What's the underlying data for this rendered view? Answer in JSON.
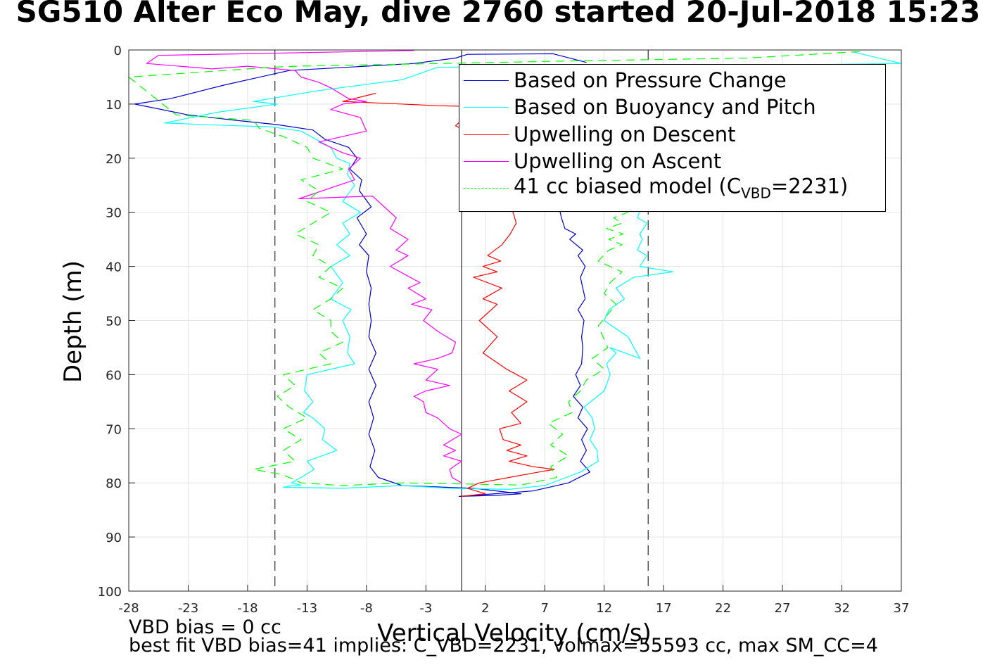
{
  "title": "SG510 Alter Eco May, dive 2760 started 20-Jul-2018 15:23",
  "footer": {
    "line1": "VBD bias = 0 cc",
    "line2": "best fit VBD bias=41 implies: C_VBD=2231, volmax=55593 cc, max SM_CC=4"
  },
  "chart_data": {
    "type": "line",
    "title": "SG510 Alter Eco May, dive 2760 started 20-Jul-2018 15:23",
    "xlabel": "Vertical Velocity (cm/s)",
    "ylabel": "Depth (m)",
    "xlim": [
      -28,
      37
    ],
    "ylim": [
      0,
      100
    ],
    "y_reversed": true,
    "grid": true,
    "legend_position": "top-right",
    "xticks": [
      -28,
      -23,
      -18,
      -13,
      -8,
      -3,
      2,
      7,
      12,
      17,
      22,
      27,
      32,
      37
    ],
    "yticks": [
      0,
      10,
      20,
      30,
      40,
      50,
      60,
      70,
      80,
      90,
      100
    ],
    "reference_lines": {
      "solid_vertical_x": 0,
      "dashed_vertical_x": [
        -15.7,
        15.7
      ]
    },
    "series": [
      {
        "name": "Based on Pressure Change",
        "color": "#0000cc",
        "style": "solid",
        "x": [
          10.5,
          7.7,
          0.5,
          -0.5,
          -4,
          -14.5,
          -20,
          -24.5,
          -27.5,
          -23,
          -19,
          -15.5,
          -12.5,
          -11.5,
          -9.5,
          -8.8,
          -9.4,
          -8.4,
          -8.6,
          -7.6,
          -8.8,
          -8,
          -8.6,
          -7.8,
          -8,
          -7.6,
          -7.8,
          -7.6,
          -7.8,
          -7.2,
          -7.8,
          -7.2,
          -7.8,
          -7.4,
          -7.8,
          -7.3,
          -7.7,
          -7,
          -5,
          1,
          5,
          3,
          -0.2,
          6,
          9,
          10.8,
          10,
          10.5,
          10.1,
          10.6,
          9.8,
          10.2,
          9.4,
          10,
          9.6,
          10.1,
          10.2,
          10.1,
          10.3,
          9.8,
          10.4,
          10.2,
          10,
          10.4,
          9.8,
          10.2,
          9.1,
          9.6,
          8.7,
          8.4,
          8.3,
          8.1
        ],
        "y": [
          2.3,
          0.7,
          0.8,
          1.5,
          2.5,
          3.8,
          6.5,
          9,
          10,
          12,
          13,
          13.8,
          14.8,
          16.5,
          18,
          20,
          22,
          24,
          26,
          29,
          31,
          34,
          36,
          38,
          41,
          44,
          47,
          50,
          53,
          56,
          59,
          62,
          65,
          68,
          71,
          74,
          77,
          79,
          80.5,
          81,
          82,
          82.3,
          82.5,
          81.5,
          80,
          78,
          76,
          74,
          72,
          70,
          68,
          66,
          64,
          62,
          60,
          58,
          55,
          53,
          50,
          48,
          46,
          44,
          42,
          40,
          38,
          37,
          35,
          34,
          33,
          31,
          30,
          28
        ]
      },
      {
        "name": "Based on Buoyancy and Pitch",
        "color": "#00ffff",
        "style": "solid",
        "x": [
          33,
          37,
          27,
          10,
          -2,
          -5,
          -12,
          -17.5,
          -15.5,
          -20.5,
          -25,
          -19,
          -16,
          -13.5,
          -11,
          -10.5,
          -9.4,
          -9.6,
          -9,
          -10,
          -8.5,
          -10,
          -9.4,
          -10.5,
          -9.4,
          -11,
          -10,
          -11,
          -9.3,
          -10,
          -9.4,
          -9.6,
          -9,
          -13,
          -13.2,
          -12.5,
          -13.3,
          -12.5,
          -11.5,
          -11.7,
          -10.5,
          -13,
          -12.4,
          -13.5,
          -14.3,
          -13.5,
          -14.5,
          -15,
          -10,
          -5,
          -1,
          4,
          7,
          10,
          11.5,
          11.4,
          10.8,
          11.2,
          11,
          10.3,
          12,
          12.5,
          12.2,
          13,
          12.5,
          15,
          14,
          12,
          12.4,
          13.7,
          13,
          14.5,
          17.8,
          15,
          15.6,
          14.8,
          15.2,
          15,
          15.6,
          14.8,
          15.1
        ],
        "y": [
          0.4,
          2.5,
          2.8,
          3,
          3.2,
          5.5,
          7.5,
          9.5,
          10,
          11.5,
          13.5,
          14,
          14.2,
          15,
          18,
          20,
          21,
          23,
          25,
          28,
          30,
          32,
          34,
          36,
          38,
          40,
          43,
          46,
          48,
          50,
          53,
          56,
          58,
          60,
          63,
          65,
          67,
          68,
          70,
          72,
          74,
          76,
          77.5,
          79,
          80,
          80.4,
          80.6,
          80.8,
          81,
          80.5,
          81,
          81.2,
          80.5,
          78,
          76,
          74,
          72,
          70,
          68,
          66,
          63,
          60,
          58,
          56,
          55,
          57,
          53,
          50,
          48,
          46,
          44,
          42,
          41,
          40,
          38,
          37,
          35,
          34,
          32,
          31,
          29
        ]
      },
      {
        "name": "Upwelling on Descent",
        "color": "#ff0000",
        "style": "solid",
        "x": [
          -7.2,
          -10,
          -2,
          2,
          0.5,
          -0.5,
          1.2,
          0.8,
          2.5,
          3.2,
          3.2,
          4.5,
          4.2,
          4.6,
          4.1,
          3.4,
          2.2,
          3.3,
          1.8,
          3,
          1,
          3.4,
          1.8,
          3,
          1.5,
          3,
          1.8,
          3.8,
          5.5,
          4,
          5.5,
          4.2,
          5,
          3.2,
          3.5,
          5,
          3.8,
          5.5,
          4,
          6,
          7.8,
          6.5,
          4,
          1.5,
          0.5,
          2,
          0
        ],
        "y": [
          8,
          9.5,
          10.3,
          10.5,
          12,
          14,
          16,
          18,
          20,
          22,
          24,
          26,
          29,
          32,
          34,
          36,
          38,
          39,
          40,
          41,
          42,
          44,
          46,
          47,
          50,
          53,
          56,
          59,
          61,
          63,
          65,
          67,
          69,
          70,
          72,
          73,
          74,
          75,
          76,
          77,
          77.5,
          78,
          79,
          80,
          81,
          82,
          82.5
        ]
      },
      {
        "name": "Upwelling on Ascent",
        "color": "#ff00ff",
        "style": "solid",
        "x": [
          -4,
          -25.5,
          -26.5,
          -21,
          -18,
          -14,
          -13.5,
          -12,
          -11,
          -9.5,
          -8,
          -10,
          -11,
          -8.5,
          -8,
          -12,
          -10,
          -8.5,
          -9.5,
          -9,
          -13.7,
          -7.5,
          -6.5,
          -5.5,
          -6,
          -4.5,
          -5.5,
          -4.5,
          -6,
          -3.5,
          -4.5,
          -3,
          -4.2,
          -2.5,
          -3.2,
          -2,
          -0.5,
          -0.8,
          -2,
          -4,
          -2,
          -3,
          -1,
          -3,
          -4,
          -3.2,
          -3,
          -2,
          -1,
          0,
          -1.5,
          -0.5,
          -1.5,
          0,
          -1,
          -0.8,
          0
        ],
        "y": [
          0.1,
          1,
          2.5,
          3.5,
          3,
          3.8,
          5,
          6,
          7,
          9,
          9.5,
          10,
          11,
          12.5,
          15,
          17,
          19,
          20,
          22,
          24,
          27.5,
          27,
          29,
          31,
          33,
          35,
          37,
          38,
          40,
          43,
          44,
          46,
          47,
          48,
          50,
          52,
          54,
          56,
          57,
          58,
          59,
          61,
          62,
          63,
          64,
          65,
          67,
          68,
          70,
          71,
          73,
          74,
          75,
          76,
          77.5,
          79,
          80
        ]
      },
      {
        "name": "41 cc biased model (C_VBD=2231)",
        "color": "#00ff00",
        "style": "dashed",
        "x": [
          33.5,
          24,
          10,
          -14,
          -16,
          -28,
          -24,
          -17.5,
          -17,
          -15,
          -13,
          -12.5,
          -10,
          -13.5,
          -12,
          -13,
          -11,
          -12.5,
          -14,
          -12,
          -12.5,
          -11,
          -12,
          -10,
          -11,
          -12.5,
          -11,
          -11,
          -10,
          -12,
          -11,
          -15,
          -14,
          -15.5,
          -14.5,
          -13,
          -15,
          -13.5,
          -15,
          -14,
          -17.5,
          -15,
          -13.5,
          -10,
          -5,
          0,
          5,
          8,
          7.5,
          9,
          7.5,
          8.5,
          7.3,
          9.3,
          9,
          10,
          10.5,
          12,
          11,
          12.3,
          11.5,
          13,
          12,
          12.5,
          13.5,
          11.5,
          12.4,
          13.5,
          12.4,
          13.6,
          12.2,
          13.5,
          12.8,
          14
        ],
        "y": [
          0.3,
          1.5,
          2,
          3,
          3.2,
          5,
          12,
          13,
          14.5,
          16,
          18,
          20,
          22,
          24,
          26,
          28,
          30,
          32,
          34,
          36,
          38,
          40,
          42,
          44,
          46,
          48,
          50,
          52,
          54,
          56,
          58,
          60,
          62,
          64,
          66,
          68,
          70,
          72,
          74,
          76,
          77.5,
          78.5,
          80,
          80.5,
          80,
          80.2,
          80.4,
          79,
          77,
          75,
          73,
          71,
          69,
          67,
          65,
          63,
          61,
          59,
          57,
          55,
          51,
          47,
          45,
          43,
          41,
          39,
          37,
          36,
          35,
          34,
          33,
          32,
          31,
          30
        ]
      }
    ]
  }
}
